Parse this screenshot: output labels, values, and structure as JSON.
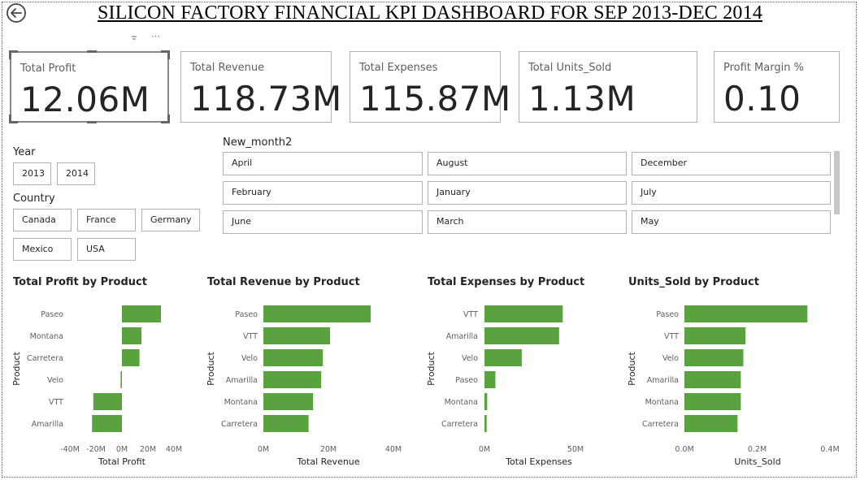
{
  "title": "SILICON FACTORY FINANCIAL KPI DASHBOARD FOR SEP 2013-DEC 2014",
  "icons": {
    "back": "back-arrow-icon",
    "filter": "filter-icon",
    "more": "more-options-icon"
  },
  "colors": {
    "bar": "#5aa23f",
    "text": "#252423",
    "border": "#b3b0ad"
  },
  "kpis": [
    {
      "label": "Total Profit",
      "value": "12.06M"
    },
    {
      "label": "Total Revenue",
      "value": "118.73M"
    },
    {
      "label": "Total Expenses",
      "value": "115.87M"
    },
    {
      "label": "Total Units_Sold",
      "value": "1.13M"
    },
    {
      "label": "Profit Margin %",
      "value": "0.10"
    }
  ],
  "slicers": {
    "year": {
      "title": "Year",
      "options": [
        "2013",
        "2014"
      ]
    },
    "country": {
      "title": "Country",
      "options": [
        "Canada",
        "France",
        "Germany",
        "Mexico",
        "USA"
      ]
    },
    "month": {
      "title": "New_month2",
      "options": [
        "April",
        "August",
        "December",
        "February",
        "January",
        "July",
        "June",
        "March",
        "May"
      ]
    }
  },
  "chart_data": [
    {
      "type": "bar",
      "orientation": "horizontal",
      "title": "Total Profit by Product",
      "xlabel": "Total Profit",
      "ylabel": "Product",
      "categories": [
        "Paseo",
        "Montana",
        "Carretera",
        "Velo",
        "VTT",
        "Amarilla"
      ],
      "values": [
        30000000,
        15000000,
        13500000,
        -1000000,
        -22000000,
        -23000000
      ],
      "xlim": [
        -40000000,
        40000000
      ],
      "ticks": [
        "-40M",
        "-20M",
        "0M",
        "20M",
        "40M"
      ]
    },
    {
      "type": "bar",
      "orientation": "horizontal",
      "title": "Total Revenue by Product",
      "xlabel": "Total Revenue",
      "ylabel": "Product",
      "categories": [
        "Paseo",
        "VTT",
        "Velo",
        "Amarilla",
        "Montana",
        "Carretera"
      ],
      "values": [
        33000000,
        20500000,
        18300000,
        17800000,
        15300000,
        13900000
      ],
      "xlim": [
        0,
        40000000
      ],
      "ticks": [
        "0M",
        "20M",
        "40M"
      ]
    },
    {
      "type": "bar",
      "orientation": "horizontal",
      "title": "Total Expenses by Product",
      "xlabel": "Total Expenses",
      "ylabel": "Product",
      "categories": [
        "VTT",
        "Amarilla",
        "Velo",
        "Paseo",
        "Montana",
        "Carretera"
      ],
      "values": [
        43000000,
        41000000,
        20500000,
        6000000,
        1500000,
        1200000
      ],
      "xlim": [
        0,
        50000000
      ],
      "ticks": [
        "0M",
        "50M"
      ]
    },
    {
      "type": "bar",
      "orientation": "horizontal",
      "title": "Units_Sold by Product",
      "xlabel": "Units_Sold",
      "ylabel": "Product",
      "categories": [
        "Paseo",
        "VTT",
        "Velo",
        "Amarilla",
        "Montana",
        "Carretera"
      ],
      "values": [
        338000,
        168000,
        162000,
        155000,
        155000,
        146000
      ],
      "xlim": [
        0,
        400000
      ],
      "ticks": [
        "0.0M",
        "0.2M",
        "0.4M"
      ]
    }
  ]
}
